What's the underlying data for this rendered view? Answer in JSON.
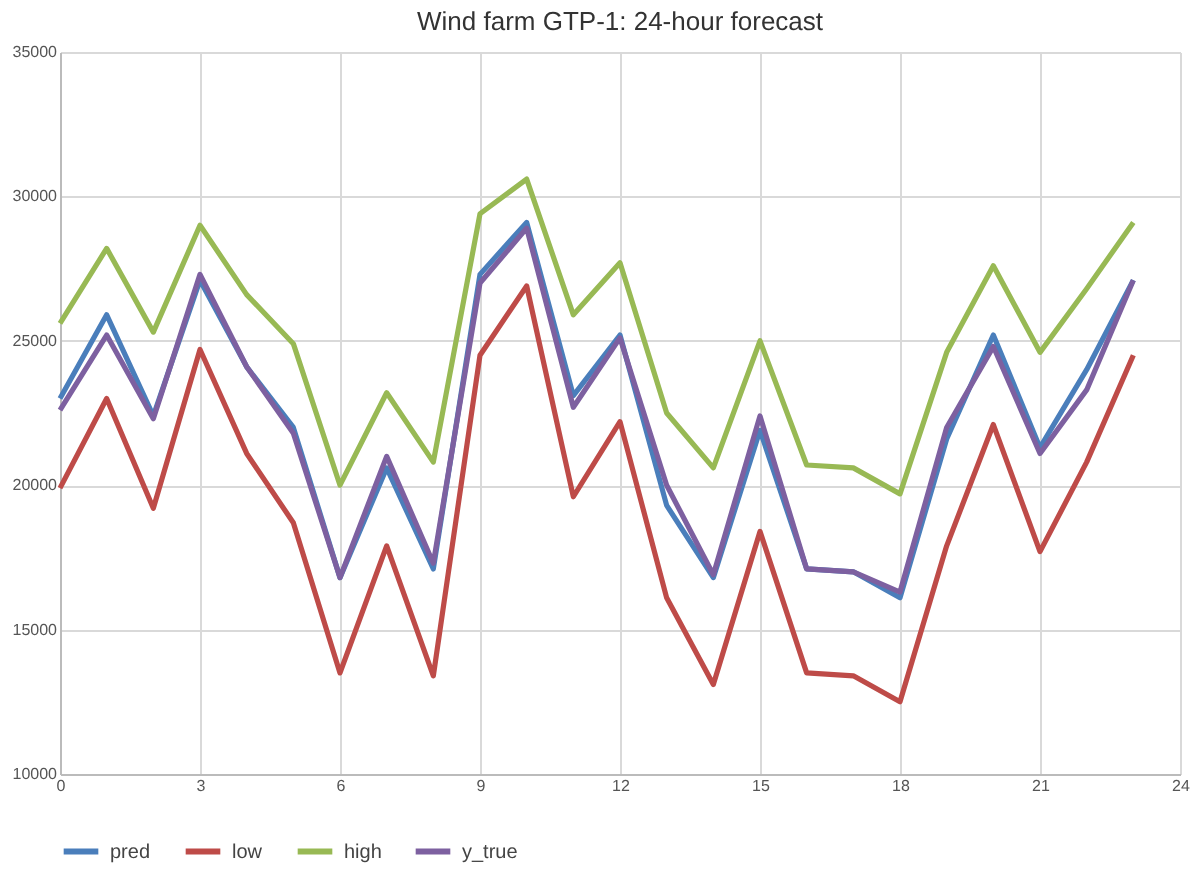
{
  "chart_data": {
    "type": "line",
    "title": "Wind farm GTP-1: 24-hour forecast",
    "x": [
      0,
      1,
      2,
      3,
      4,
      5,
      6,
      7,
      8,
      9,
      10,
      11,
      12,
      13,
      14,
      15,
      16,
      17,
      18,
      19,
      20,
      21,
      22,
      23
    ],
    "series": [
      {
        "name": "pred",
        "color": "#4a7ebb",
        "values": [
          23000,
          25900,
          22400,
          27100,
          24100,
          22000,
          16800,
          20600,
          17100,
          27300,
          29100,
          23100,
          25200,
          19300,
          16800,
          21900,
          17100,
          17000,
          16100,
          21600,
          25200,
          21300,
          24000,
          27100
        ]
      },
      {
        "name": "low",
        "color": "#be4b48",
        "values": [
          19900,
          23000,
          19200,
          24700,
          21100,
          18700,
          13500,
          17900,
          13400,
          24500,
          26900,
          19600,
          22200,
          16100,
          13100,
          18400,
          13500,
          13400,
          12500,
          17900,
          22100,
          17700,
          20800,
          24500
        ]
      },
      {
        "name": "high",
        "color": "#98b954",
        "values": [
          25600,
          28200,
          25300,
          29000,
          26600,
          24900,
          20000,
          23200,
          20800,
          29400,
          30600,
          25900,
          27700,
          22500,
          20600,
          25000,
          20700,
          20600,
          19700,
          24600,
          27600,
          24600,
          26800,
          29100
        ]
      },
      {
        "name": "y_true",
        "color": "#7d60a0",
        "values": [
          22600,
          25200,
          22300,
          27300,
          24100,
          21800,
          16800,
          21000,
          17300,
          27000,
          28900,
          22700,
          25100,
          20000,
          16900,
          22400,
          17100,
          17000,
          16300,
          22000,
          24800,
          21100,
          23300,
          27100
        ]
      }
    ],
    "xlim": [
      0,
      24
    ],
    "xticks": [
      0,
      3,
      6,
      9,
      12,
      15,
      18,
      21,
      24
    ],
    "ylim": [
      10000,
      35000
    ],
    "yticks": [
      10000,
      15000,
      20000,
      25000,
      30000,
      35000
    ],
    "grid": true,
    "legend": "bottom",
    "marker": "none",
    "line_style": "solid"
  }
}
